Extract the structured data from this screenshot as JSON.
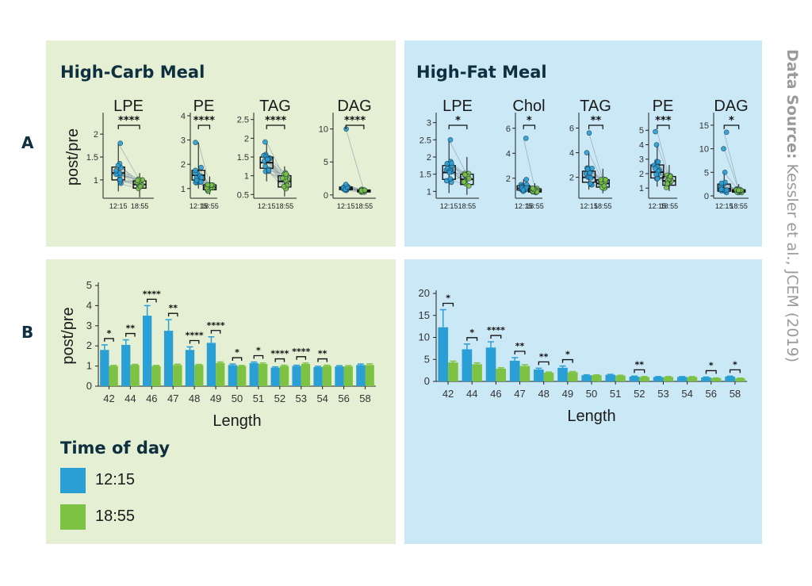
{
  "figure": {
    "row_labels": [
      "A",
      "B"
    ],
    "panel_titles": {
      "carb": "High-Carb Meal",
      "fat": "High-Fat Meal"
    },
    "source_label": "Data Source:",
    "source_text": "Kessler et al., JCEM (2019)"
  },
  "legend": {
    "title": "Time of day",
    "items": [
      {
        "label": "12:15",
        "color": "#2a9fd6"
      },
      {
        "label": "18:55",
        "color": "#7dc242"
      }
    ]
  },
  "colors": {
    "blue": "#2a9fd6",
    "green": "#7dc242",
    "bg_green": "#e4efd4",
    "bg_blue": "#cbe8f6"
  },
  "chart_data": [
    {
      "type": "box",
      "panel": "A-carb",
      "title": "LPE",
      "ylabel": "post/pre",
      "ylim": [
        0.6,
        2.4
      ],
      "yticks": [
        1.0,
        1.5,
        2.0
      ],
      "categories": [
        "12:15",
        "18:55"
      ],
      "medians": [
        1.15,
        0.9
      ],
      "q1": [
        1.0,
        0.82
      ],
      "q3": [
        1.28,
        0.98
      ],
      "whisker_low": [
        0.75,
        0.62
      ],
      "whisker_high": [
        1.8,
        1.15
      ],
      "significance": "****"
    },
    {
      "type": "box",
      "panel": "A-carb",
      "title": "PE",
      "ylabel": "",
      "ylim": [
        0.6,
        4.0
      ],
      "yticks": [
        1,
        2,
        3,
        4
      ],
      "categories": [
        "12:15",
        "18:55"
      ],
      "medians": [
        1.55,
        1.05
      ],
      "q1": [
        1.35,
        0.95
      ],
      "q3": [
        1.75,
        1.15
      ],
      "whisker_low": [
        1.0,
        0.75
      ],
      "whisker_high": [
        2.9,
        1.5
      ],
      "significance": "****"
    },
    {
      "type": "box",
      "panel": "A-carb",
      "title": "TAG",
      "ylabel": "",
      "ylim": [
        0.4,
        2.6
      ],
      "yticks": [
        0.5,
        1.0,
        1.5,
        2.0,
        2.5
      ],
      "categories": [
        "12:15",
        "18:55"
      ],
      "medians": [
        1.35,
        0.85
      ],
      "q1": [
        1.2,
        0.7
      ],
      "q3": [
        1.5,
        1.0
      ],
      "whisker_low": [
        0.85,
        0.45
      ],
      "whisker_high": [
        1.9,
        1.25
      ],
      "significance": "****"
    },
    {
      "type": "box",
      "panel": "A-carb",
      "title": "DAG",
      "ylabel": "",
      "ylim": [
        -0.5,
        12
      ],
      "yticks": [
        0,
        5,
        10
      ],
      "categories": [
        "12:15",
        "18:55"
      ],
      "medians": [
        1.0,
        0.6
      ],
      "q1": [
        0.8,
        0.45
      ],
      "q3": [
        1.2,
        0.75
      ],
      "whisker_low": [
        0.5,
        0.3
      ],
      "whisker_high": [
        1.6,
        1.0
      ],
      "outliers": [
        10
      ],
      "significance": "****"
    },
    {
      "type": "box",
      "panel": "A-fat",
      "title": "LPE",
      "ylabel": "",
      "ylim": [
        0.8,
        3.2
      ],
      "yticks": [
        1.0,
        1.5,
        2.0,
        2.5,
        3.0
      ],
      "categories": [
        "12:15",
        "18:55"
      ],
      "medians": [
        1.55,
        1.35
      ],
      "q1": [
        1.35,
        1.2
      ],
      "q3": [
        1.75,
        1.5
      ],
      "whisker_low": [
        0.95,
        0.9
      ],
      "whisker_high": [
        2.5,
        2.0
      ],
      "significance": "*"
    },
    {
      "type": "box",
      "panel": "A-fat",
      "title": "Chol",
      "ylabel": "",
      "ylim": [
        0.4,
        7
      ],
      "yticks": [
        2,
        4,
        6
      ],
      "categories": [
        "12:15",
        "18:55"
      ],
      "medians": [
        1.2,
        1.0
      ],
      "q1": [
        1.05,
        0.9
      ],
      "q3": [
        1.4,
        1.15
      ],
      "whisker_low": [
        0.8,
        0.7
      ],
      "whisker_high": [
        1.9,
        1.6
      ],
      "outliers": [
        5.2
      ],
      "significance": "*"
    },
    {
      "type": "box",
      "panel": "A-fat",
      "title": "TAG",
      "ylabel": "",
      "ylim": [
        0.3,
        7
      ],
      "yticks": [
        2,
        4,
        6
      ],
      "categories": [
        "12:15",
        "18:55"
      ],
      "medians": [
        2.0,
        1.5
      ],
      "q1": [
        1.6,
        1.2
      ],
      "q3": [
        2.5,
        1.8
      ],
      "whisker_low": [
        1.0,
        0.7
      ],
      "whisker_high": [
        4.0,
        2.7
      ],
      "outliers": [
        5.6
      ],
      "significance": "**"
    },
    {
      "type": "box",
      "panel": "A-fat",
      "title": "PE",
      "ylabel": "",
      "ylim": [
        0.3,
        6
      ],
      "yticks": [
        1,
        2,
        3,
        4,
        5
      ],
      "categories": [
        "12:15",
        "18:55"
      ],
      "medians": [
        2.1,
        1.5
      ],
      "q1": [
        1.7,
        1.2
      ],
      "q3": [
        2.6,
        1.8
      ],
      "whisker_low": [
        1.1,
        0.8
      ],
      "whisker_high": [
        4.0,
        2.6
      ],
      "outliers": [
        4.9
      ],
      "significance": "***"
    },
    {
      "type": "box",
      "panel": "A-fat",
      "title": "DAG",
      "ylabel": "",
      "ylim": [
        -0.5,
        17
      ],
      "yticks": [
        0,
        5,
        10,
        15
      ],
      "categories": [
        "12:15",
        "18:55"
      ],
      "medians": [
        1.5,
        1.0
      ],
      "q1": [
        1.0,
        0.8
      ],
      "q3": [
        2.5,
        1.3
      ],
      "whisker_low": [
        0.5,
        0.4
      ],
      "whisker_high": [
        5.0,
        2.5
      ],
      "outliers": [
        13.5,
        10
      ],
      "significance": "*"
    },
    {
      "type": "bar",
      "panel": "B-carb",
      "xlabel": "Length",
      "ylabel": "post/pre",
      "ylim": [
        0,
        5
      ],
      "yticks": [
        0,
        1,
        2,
        3,
        4,
        5
      ],
      "categories": [
        "42",
        "44",
        "46",
        "47",
        "48",
        "49",
        "50",
        "51",
        "52",
        "53",
        "54",
        "56",
        "58"
      ],
      "series": [
        {
          "name": "12:15",
          "values": [
            1.8,
            2.05,
            3.5,
            2.75,
            1.8,
            2.15,
            1.05,
            1.15,
            0.92,
            1.0,
            0.95,
            0.98,
            1.05
          ],
          "errors": [
            0.25,
            0.25,
            0.5,
            0.55,
            0.15,
            0.3,
            0.05,
            0.05,
            0.04,
            0.04,
            0.04,
            0.04,
            0.05
          ]
        },
        {
          "name": "18:55",
          "values": [
            1.0,
            1.05,
            1.0,
            1.05,
            1.05,
            1.15,
            1.0,
            1.1,
            1.0,
            1.1,
            1.0,
            0.98,
            1.05
          ],
          "errors": [
            0.03,
            0.03,
            0.03,
            0.04,
            0.03,
            0.05,
            0.03,
            0.05,
            0.04,
            0.05,
            0.04,
            0.04,
            0.06
          ]
        }
      ],
      "significance": [
        "*",
        "**",
        "****",
        "**",
        "****",
        "****",
        "*",
        "*",
        "****",
        "****",
        "**",
        "",
        ""
      ]
    },
    {
      "type": "bar",
      "panel": "B-fat",
      "xlabel": "Length",
      "ylabel": "",
      "ylim": [
        0,
        20
      ],
      "yticks": [
        0,
        5,
        10,
        15,
        20
      ],
      "categories": [
        "42",
        "44",
        "46",
        "47",
        "48",
        "49",
        "50",
        "51",
        "52",
        "53",
        "54",
        "56",
        "58"
      ],
      "series": [
        {
          "name": "12:15",
          "values": [
            12.3,
            7.3,
            7.7,
            4.7,
            2.7,
            3.1,
            1.4,
            1.5,
            1.1,
            1.0,
            1.0,
            0.9,
            1.1
          ],
          "errors": [
            4.0,
            1.2,
            1.3,
            0.7,
            0.3,
            0.4,
            0.1,
            0.1,
            0.1,
            0.1,
            0.1,
            0.1,
            0.1
          ]
        },
        {
          "name": "18:55",
          "values": [
            4.3,
            3.9,
            2.9,
            3.5,
            2.0,
            2.1,
            1.4,
            1.3,
            1.0,
            1.0,
            1.0,
            0.75,
            0.7
          ],
          "errors": [
            0.3,
            0.3,
            0.2,
            0.3,
            0.15,
            0.15,
            0.1,
            0.1,
            0.1,
            0.1,
            0.1,
            0.05,
            0.05
          ]
        }
      ],
      "significance": [
        "*",
        "*",
        "****",
        "**",
        "**",
        "*",
        "",
        "",
        "**",
        "",
        "",
        "*",
        "*"
      ]
    }
  ]
}
